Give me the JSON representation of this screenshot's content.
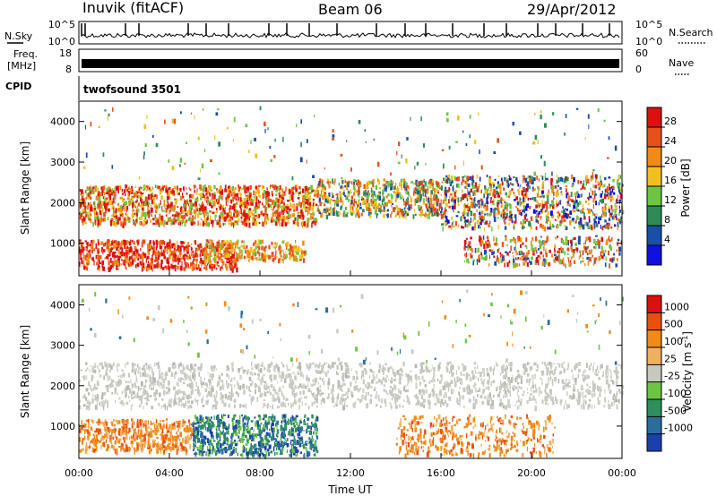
{
  "header": {
    "station": "Inuvik (fitACF)",
    "beam": "Beam 06",
    "date": "29/Apr/2012"
  },
  "top_panels": {
    "nsky_label": "N.Sky",
    "nsky_left_ticks": [
      "10^5",
      "10^0"
    ],
    "nsky_right_ticks": [
      "10^5",
      "10^0"
    ],
    "nsearch_label": "N.Search",
    "freq_label_1": "Freq.",
    "freq_label_2": "[MHz]",
    "freq_left_ticks": [
      "18",
      "8"
    ],
    "nave_right_ticks": [
      "60",
      "0"
    ],
    "nave_label": "Nave",
    "cpid_label": "CPID",
    "cpid_value": "twofsound 3501"
  },
  "chart_data": [
    {
      "type": "heatmap",
      "ylabel": "Slant Range [km]",
      "ylim": [
        200,
        4500
      ],
      "yticks": [
        "1000",
        "2000",
        "3000",
        "4000"
      ],
      "xticks": [
        "00:00",
        "04:00",
        "08:00",
        "12:00",
        "16:00",
        "20:00",
        "00:00"
      ],
      "colorbar": {
        "label": "Power [dB]",
        "ticks": [
          "4",
          "8",
          "12",
          "16",
          "20",
          "24",
          "28"
        ],
        "colors": [
          "#1010e0",
          "#1a4fa8",
          "#2e8b57",
          "#6cc644",
          "#f0c020",
          "#f08a18",
          "#e8501a",
          "#dd1010"
        ]
      }
    },
    {
      "type": "heatmap",
      "ylabel": "Slant Range [km]",
      "xlabel": "Time UT",
      "ylim": [
        200,
        4500
      ],
      "yticks": [
        "1000",
        "2000",
        "3000",
        "4000"
      ],
      "xticks": [
        "00:00",
        "04:00",
        "08:00",
        "12:00",
        "16:00",
        "20:00",
        "00:00"
      ],
      "colorbar": {
        "label": "Velocity [m s",
        "label_sup": "-1",
        "label_end": "]",
        "ticks": [
          "1000",
          "500",
          "100",
          "25",
          "-25",
          "-100",
          "-500",
          "-1000"
        ],
        "colors": [
          "#1d3fae",
          "#2a6e9e",
          "#2f8e60",
          "#6cc644",
          "#c8c8c0",
          "#f0b060",
          "#f08a18",
          "#e85010",
          "#dd1010"
        ]
      }
    }
  ]
}
